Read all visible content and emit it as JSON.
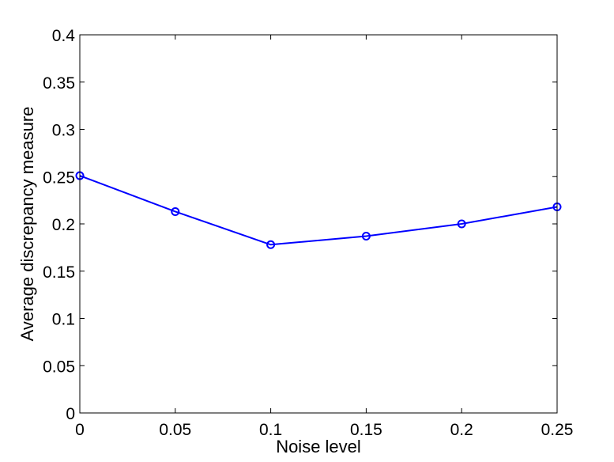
{
  "chart_data": {
    "type": "line",
    "title": "",
    "xlabel": "Noise level",
    "ylabel": "Average discrepancy measure",
    "xlim": [
      0,
      0.25
    ],
    "ylim": [
      0,
      0.4
    ],
    "x_ticks": [
      "0",
      "0.05",
      "0.1",
      "0.15",
      "0.2",
      "0.25"
    ],
    "y_ticks": [
      "0",
      "0.05",
      "0.1",
      "0.15",
      "0.2",
      "0.25",
      "0.3",
      "0.35",
      "0.4"
    ],
    "grid": false,
    "legend": "none",
    "series": [
      {
        "x": [
          0,
          0.05,
          0.1,
          0.15,
          0.2,
          0.25
        ],
        "values": [
          0.251,
          0.213,
          0.178,
          0.187,
          0.2,
          0.218
        ],
        "color": "#0000ff",
        "marker": "circle"
      }
    ]
  }
}
